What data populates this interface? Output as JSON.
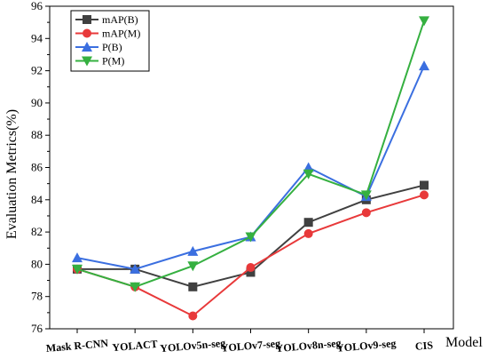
{
  "chart_data": {
    "type": "line",
    "categories": [
      "Mask R-CNN",
      "YOLACT",
      "YOLOv5n-seg",
      "YOLOv7-seg",
      "YOLOv8n-seg",
      "YOLOv9-seg",
      "CIS"
    ],
    "xlabel": "Model",
    "ylabel": "Evaluation Metrics(%)",
    "ylim": [
      76,
      96
    ],
    "yticks": [
      76,
      78,
      80,
      82,
      84,
      86,
      88,
      90,
      92,
      94,
      96
    ],
    "legend_position": "top-left",
    "grid": false,
    "series": [
      {
        "name": "mAP(B)",
        "color": "#404040",
        "marker": "square",
        "values": [
          79.7,
          79.7,
          78.6,
          79.5,
          82.6,
          84.0,
          84.9
        ]
      },
      {
        "name": "mAP(M)",
        "color": "#e8393a",
        "marker": "circle",
        "values": [
          79.7,
          78.6,
          76.8,
          79.8,
          81.9,
          83.2,
          84.3
        ]
      },
      {
        "name": "P(B)",
        "color": "#3b6fe0",
        "marker": "triangle-up",
        "values": [
          80.4,
          79.7,
          80.8,
          81.7,
          86.0,
          84.2,
          92.3
        ]
      },
      {
        "name": "P(M)",
        "color": "#35b040",
        "marker": "triangle-down",
        "values": [
          79.7,
          78.6,
          79.9,
          81.7,
          85.6,
          84.3,
          95.1
        ]
      }
    ]
  }
}
